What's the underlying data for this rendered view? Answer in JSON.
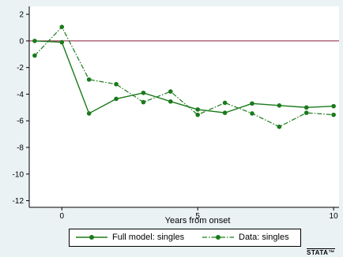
{
  "chart_data": {
    "type": "line",
    "title": "",
    "xlabel": "Years from onset",
    "ylabel": "",
    "xlim": [
      -1.2,
      10.2
    ],
    "ylim": [
      -12.5,
      2.6
    ],
    "xticks": [
      0,
      5,
      10
    ],
    "yticks": [
      2,
      0,
      -2,
      -4,
      -6,
      -8,
      -10,
      -12
    ],
    "xtick_labels": [
      "0",
      "5",
      "10"
    ],
    "ytick_labels": [
      "2",
      "0",
      "-2",
      "-4",
      "-6",
      "-8",
      "-10",
      "-12"
    ],
    "reference_line": {
      "y": 0,
      "color": "#8b1a3a"
    },
    "grid": false,
    "legend_position": "bottom",
    "series": [
      {
        "name": "Full model: singles",
        "style": "solid",
        "color": "#1a7a1a",
        "x": [
          -1,
          0,
          1,
          2,
          3,
          4,
          5,
          6,
          7,
          8,
          9,
          10
        ],
        "y": [
          0,
          -0.1,
          -5.45,
          -4.35,
          -3.9,
          -4.55,
          -5.15,
          -5.4,
          -4.7,
          -4.85,
          -5.0,
          -4.9
        ]
      },
      {
        "name": "Data: singles",
        "style": "dashdot",
        "color": "#1a7a1a",
        "x": [
          -1,
          0,
          1,
          2,
          3,
          4,
          5,
          6,
          7,
          8,
          9,
          10
        ],
        "y": [
          -1.1,
          1.05,
          -2.9,
          -3.25,
          -4.6,
          -3.8,
          -5.55,
          -4.65,
          -5.45,
          -6.45,
          -5.4,
          -5.55
        ]
      }
    ]
  },
  "legend": {
    "items": [
      "Full model: singles",
      "Data: singles"
    ]
  },
  "watermark": "STATA™"
}
